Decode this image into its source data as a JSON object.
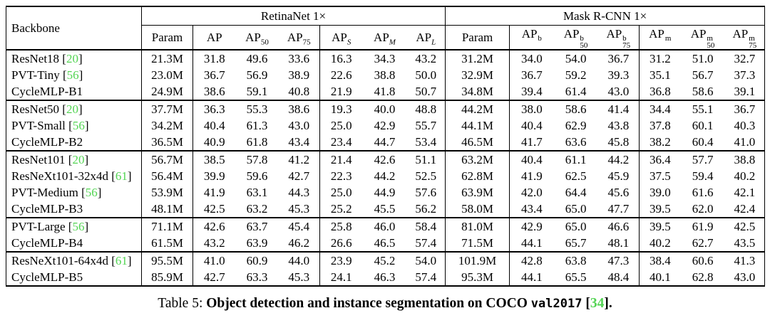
{
  "table": {
    "group_headers": [
      {
        "key": "backbone",
        "label": "Backbone"
      },
      {
        "key": "retinanet",
        "label": "RetinaNet 1×",
        "colspan": 7
      },
      {
        "key": "maskrcnn",
        "label": "Mask R-CNN 1×",
        "colspan": 7
      }
    ],
    "columns": [
      {
        "key": "param-retinanet",
        "base": "Param"
      },
      {
        "key": "ap",
        "base": "AP"
      },
      {
        "key": "ap50",
        "base": "AP",
        "sub": "50"
      },
      {
        "key": "ap75",
        "base": "AP",
        "sub": "75"
      },
      {
        "key": "apS",
        "base": "AP",
        "sub": "S",
        "italic_sub": true
      },
      {
        "key": "apM",
        "base": "AP",
        "sub": "M",
        "italic_sub": true
      },
      {
        "key": "apL",
        "base": "AP",
        "sub": "L",
        "italic_sub": true
      },
      {
        "key": "param-maskrcnn",
        "base": "Param"
      },
      {
        "key": "apb",
        "base": "AP",
        "sup": "b"
      },
      {
        "key": "apb50",
        "base": "AP",
        "sup": "b",
        "sub": "50"
      },
      {
        "key": "apb75",
        "base": "AP",
        "sup": "b",
        "sub": "75"
      },
      {
        "key": "apm",
        "base": "AP",
        "sup": "m"
      },
      {
        "key": "apm50",
        "base": "AP",
        "sup": "m",
        "sub": "50"
      },
      {
        "key": "apm75",
        "base": "AP",
        "sup": "m",
        "sub": "75"
      }
    ],
    "groups": [
      {
        "rows": [
          {
            "backbone": "ResNet18",
            "cite": "20",
            "retinanet": {
              "param": "21.3M",
              "values": [
                "31.8",
                "49.6",
                "33.6",
                "16.3",
                "34.3",
                "43.2"
              ]
            },
            "maskrcnn": {
              "param": "31.2M",
              "values": [
                "34.0",
                "54.0",
                "36.7",
                "31.2",
                "51.0",
                "32.7"
              ]
            }
          },
          {
            "backbone": "PVT-Tiny",
            "cite": "56",
            "retinanet": {
              "param": "23.0M",
              "values": [
                "36.7",
                "56.9",
                "38.9",
                "22.6",
                "38.8",
                "50.0"
              ]
            },
            "maskrcnn": {
              "param": "32.9M",
              "values": [
                "36.7",
                "59.2",
                "39.3",
                "35.1",
                "56.7",
                "37.3"
              ]
            }
          },
          {
            "backbone": "CycleMLP-B1",
            "cite": null,
            "retinanet": {
              "param": "24.9M",
              "values": [
                "38.6",
                "59.1",
                "40.8",
                "21.9",
                "41.8",
                "50.7"
              ]
            },
            "maskrcnn": {
              "param": "34.8M",
              "values": [
                "39.4",
                "61.4",
                "43.0",
                "36.8",
                "58.6",
                "39.1"
              ]
            }
          }
        ]
      },
      {
        "rows": [
          {
            "backbone": "ResNet50",
            "cite": "20",
            "retinanet": {
              "param": "37.7M",
              "values": [
                "36.3",
                "55.3",
                "38.6",
                "19.3",
                "40.0",
                "48.8"
              ]
            },
            "maskrcnn": {
              "param": "44.2M",
              "values": [
                "38.0",
                "58.6",
                "41.4",
                "34.4",
                "55.1",
                "36.7"
              ]
            }
          },
          {
            "backbone": "PVT-Small",
            "cite": "56",
            "retinanet": {
              "param": "34.2M",
              "values": [
                "40.4",
                "61.3",
                "43.0",
                "25.0",
                "42.9",
                "55.7"
              ]
            },
            "maskrcnn": {
              "param": "44.1M",
              "values": [
                "40.4",
                "62.9",
                "43.8",
                "37.8",
                "60.1",
                "40.3"
              ]
            }
          },
          {
            "backbone": "CycleMLP-B2",
            "cite": null,
            "retinanet": {
              "param": "36.5M",
              "values": [
                "40.9",
                "61.8",
                "43.4",
                "23.4",
                "44.7",
                "53.4"
              ]
            },
            "maskrcnn": {
              "param": "46.5M",
              "values": [
                "41.7",
                "63.6",
                "45.8",
                "38.2",
                "60.4",
                "41.0"
              ]
            }
          }
        ]
      },
      {
        "rows": [
          {
            "backbone": "ResNet101",
            "cite": "20",
            "retinanet": {
              "param": "56.7M",
              "values": [
                "38.5",
                "57.8",
                "41.2",
                "21.4",
                "42.6",
                "51.1"
              ]
            },
            "maskrcnn": {
              "param": "63.2M",
              "values": [
                "40.4",
                "61.1",
                "44.2",
                "36.4",
                "57.7",
                "38.8"
              ]
            }
          },
          {
            "backbone": "ResNeXt101-32x4d",
            "cite": "61",
            "retinanet": {
              "param": "56.4M",
              "values": [
                "39.9",
                "59.6",
                "42.7",
                "22.3",
                "44.2",
                "52.5"
              ]
            },
            "maskrcnn": {
              "param": "62.8M",
              "values": [
                "41.9",
                "62.5",
                "45.9",
                "37.5",
                "59.4",
                "40.2"
              ]
            }
          },
          {
            "backbone": "PVT-Medium",
            "cite": "56",
            "retinanet": {
              "param": "53.9M",
              "values": [
                "41.9",
                "63.1",
                "44.3",
                "25.0",
                "44.9",
                "57.6"
              ]
            },
            "maskrcnn": {
              "param": "63.9M",
              "values": [
                "42.0",
                "64.4",
                "45.6",
                "39.0",
                "61.6",
                "42.1"
              ]
            }
          },
          {
            "backbone": "CycleMLP-B3",
            "cite": null,
            "retinanet": {
              "param": "48.1M",
              "values": [
                "42.5",
                "63.2",
                "45.3",
                "25.2",
                "45.5",
                "56.2"
              ]
            },
            "maskrcnn": {
              "param": "58.0M",
              "values": [
                "43.4",
                "65.0",
                "47.7",
                "39.5",
                "62.0",
                "42.4"
              ]
            }
          }
        ]
      },
      {
        "rows": [
          {
            "backbone": "PVT-Large",
            "cite": "56",
            "retinanet": {
              "param": "71.1M",
              "values": [
                "42.6",
                "63.7",
                "45.4",
                "25.8",
                "46.0",
                "58.4"
              ]
            },
            "maskrcnn": {
              "param": "81.0M",
              "values": [
                "42.9",
                "65.0",
                "46.6",
                "39.5",
                "61.9",
                "42.5"
              ]
            }
          },
          {
            "backbone": "CycleMLP-B4",
            "cite": null,
            "retinanet": {
              "param": "61.5M",
              "values": [
                "43.2",
                "63.9",
                "46.2",
                "26.6",
                "46.5",
                "57.4"
              ]
            },
            "maskrcnn": {
              "param": "71.5M",
              "values": [
                "44.1",
                "65.7",
                "48.1",
                "40.2",
                "62.7",
                "43.5"
              ]
            }
          }
        ]
      },
      {
        "rows": [
          {
            "backbone": "ResNeXt101-64x4d",
            "cite": "61",
            "retinanet": {
              "param": "95.5M",
              "values": [
                "41.0",
                "60.9",
                "44.0",
                "23.9",
                "45.2",
                "54.0"
              ]
            },
            "maskrcnn": {
              "param": "101.9M",
              "values": [
                "42.8",
                "63.8",
                "47.3",
                "38.4",
                "60.6",
                "41.3"
              ]
            }
          },
          {
            "backbone": "CycleMLP-B5",
            "cite": null,
            "retinanet": {
              "param": "85.9M",
              "values": [
                "42.7",
                "63.3",
                "45.3",
                "24.1",
                "46.3",
                "57.4"
              ]
            },
            "maskrcnn": {
              "param": "95.3M",
              "values": [
                "44.1",
                "65.5",
                "48.4",
                "40.1",
                "62.8",
                "43.0"
              ]
            }
          }
        ]
      }
    ]
  },
  "caption": {
    "prefix": "Table 5:",
    "title": "Object detection and instance segmentation on COCO",
    "code": "val2017",
    "cite": "34",
    "period": "."
  },
  "colors": {
    "citation_green": "#53d453",
    "text": "#000000",
    "background": "#ffffff"
  }
}
